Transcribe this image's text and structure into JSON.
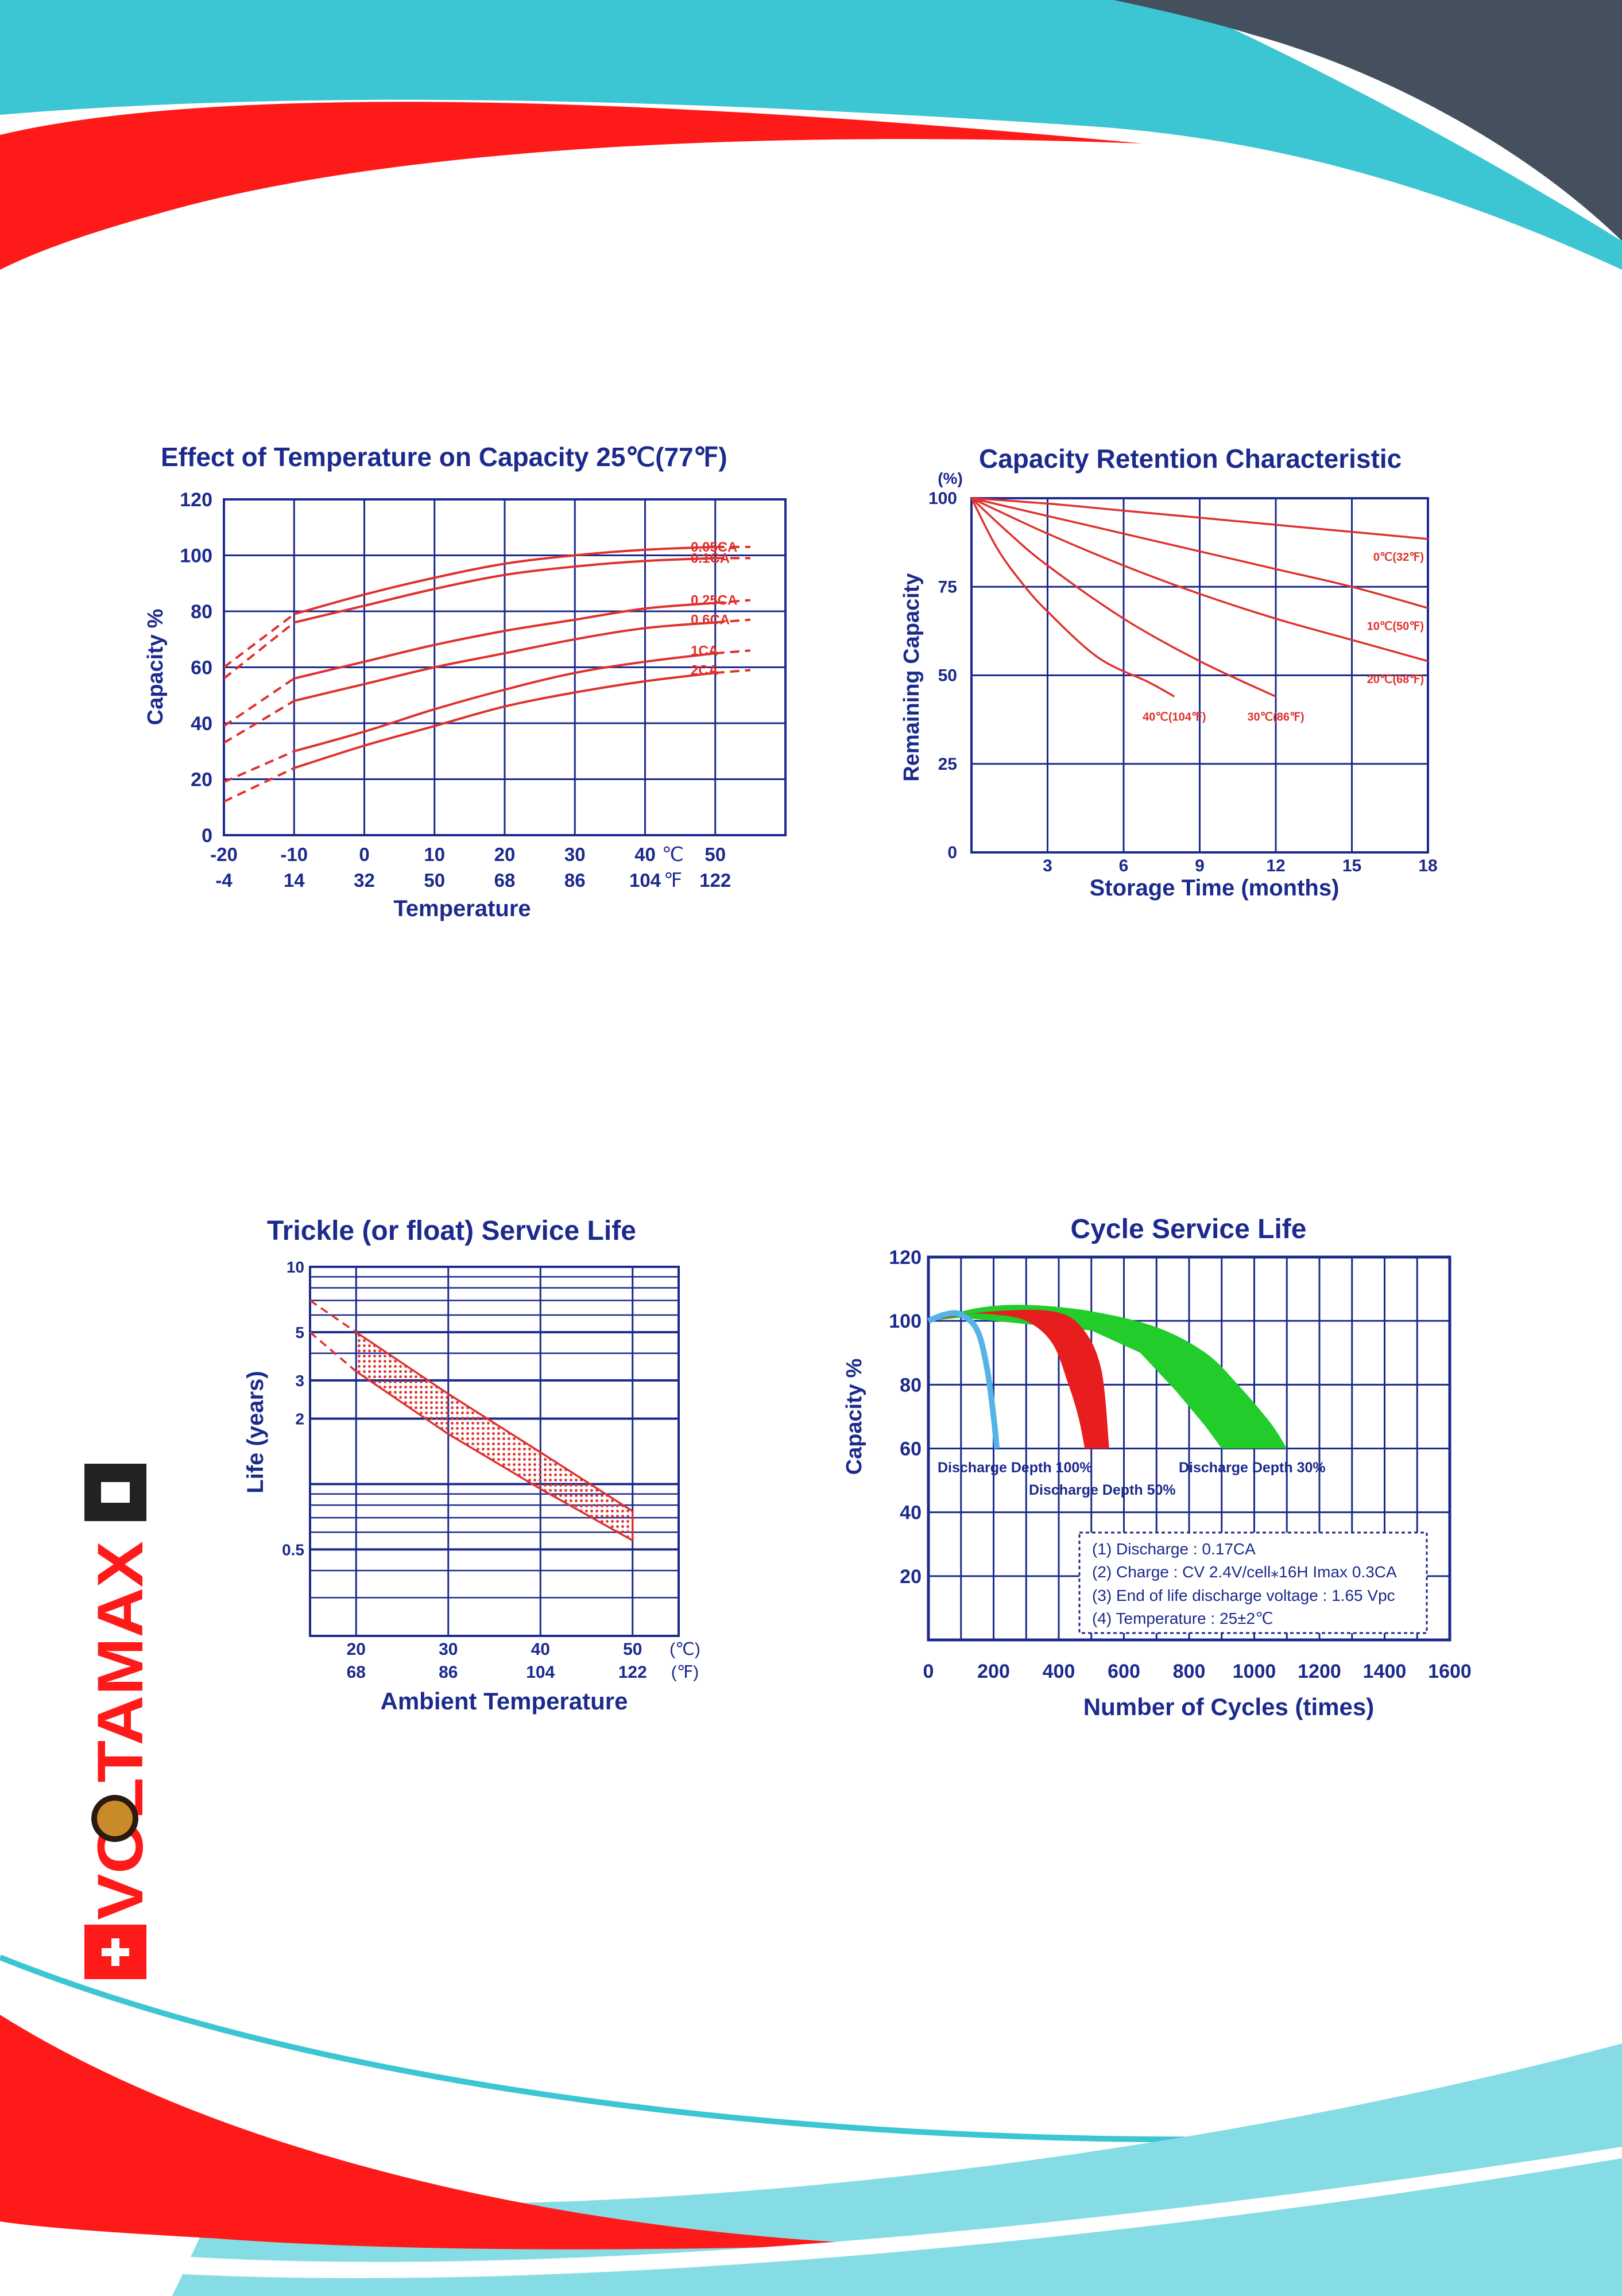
{
  "brand": {
    "logo_text": "VOLTAMAX",
    "colors": {
      "red": "#ff1a1a",
      "teal": "#3cc5d2",
      "light_teal": "#86dce5",
      "slate": "#44505e"
    }
  },
  "colors": {
    "axis": "#1b2a8c",
    "curve": "#e0312d",
    "grid": "#1b2a8c",
    "blue_fill": "#55b3e8",
    "red_fill": "#e81e1e",
    "green_fill": "#22cc2b"
  },
  "charts": {
    "temperature": {
      "title": "Effect of Temperature on Capacity  25℃(77℉)",
      "ylabel": "Capacity %",
      "xlabel": "Temperature",
      "unit_c": "℃",
      "unit_f": "℉"
    },
    "retention": {
      "title": "Capacity Retention Characteristic",
      "ylabel": "Remaining Capacity",
      "yunit": "(%)",
      "xlabel": "Storage Time (months)"
    },
    "trickle": {
      "title": "Trickle (or float) Service Life",
      "ylabel": "Life (years)",
      "xlabel": "Ambient Temperature",
      "unit_c": "(℃)",
      "unit_f": "(℉)"
    },
    "cycle": {
      "title": "Cycle Service Life",
      "ylabel": "Capacity %",
      "xlabel": "Number of Cycles (times)",
      "notes": [
        "(1) Discharge : 0.17CA",
        "(2) Charge : CV 2.4V/cell⁎16H Imax 0.3CA",
        "(3) End of life discharge voltage : 1.65 Vpc",
        "(4) Temperature : 25±2℃"
      ]
    }
  },
  "chart_data": [
    {
      "id": "temperature",
      "type": "line",
      "title": "Effect of Temperature on Capacity  25℃(77℉)",
      "xlabel": "Temperature",
      "ylabel": "Capacity %",
      "xlim": [
        -20,
        60
      ],
      "ylim": [
        0,
        120
      ],
      "x_ticks_c": [
        "-20",
        "-10",
        "0",
        "10",
        "20",
        "30",
        "40",
        "50"
      ],
      "x_ticks_f": [
        "-4",
        "14",
        "32",
        "50",
        "68",
        "86",
        "104",
        "122"
      ],
      "y_ticks": [
        "0",
        "20",
        "40",
        "60",
        "80",
        "100",
        "120"
      ],
      "series": [
        {
          "name": "0.05CA",
          "x": [
            -20,
            -10,
            0,
            10,
            20,
            30,
            40,
            50,
            55
          ],
          "y": [
            60,
            79,
            86,
            92,
            97,
            100,
            102,
            103,
            103
          ]
        },
        {
          "name": "0.1CA",
          "x": [
            -20,
            -10,
            0,
            10,
            20,
            30,
            40,
            50,
            55
          ],
          "y": [
            56,
            76,
            82,
            88,
            93,
            96,
            98,
            99,
            99
          ]
        },
        {
          "name": "0.25CA",
          "x": [
            -20,
            -10,
            0,
            10,
            20,
            30,
            40,
            50,
            55
          ],
          "y": [
            39,
            56,
            62,
            68,
            73,
            77,
            81,
            83,
            84
          ]
        },
        {
          "name": "0.6CA",
          "x": [
            -20,
            -10,
            0,
            10,
            20,
            30,
            40,
            50,
            55
          ],
          "y": [
            33,
            48,
            54,
            60,
            65,
            70,
            74,
            76,
            77
          ]
        },
        {
          "name": "1CA",
          "x": [
            -20,
            -10,
            0,
            10,
            20,
            30,
            40,
            50,
            55
          ],
          "y": [
            19,
            30,
            37,
            45,
            52,
            58,
            62,
            65,
            66
          ]
        },
        {
          "name": "2CA",
          "x": [
            -20,
            -10,
            0,
            10,
            20,
            30,
            40,
            50,
            55
          ],
          "y": [
            12,
            24,
            32,
            39,
            46,
            51,
            55,
            58,
            59
          ]
        }
      ]
    },
    {
      "id": "retention",
      "type": "line",
      "title": "Capacity Retention Characteristic",
      "xlabel": "Storage Time (months)",
      "ylabel": "Remaining Capacity",
      "xlim": [
        0,
        18
      ],
      "ylim": [
        0,
        100
      ],
      "x_ticks": [
        "3",
        "6",
        "9",
        "12",
        "15",
        "18"
      ],
      "y_ticks": [
        "0",
        "25",
        "50",
        "75",
        "100"
      ],
      "series": [
        {
          "name": "0℃(32℉)",
          "x": [
            0,
            3,
            6,
            9,
            12,
            15,
            18
          ],
          "y": [
            100,
            98.5,
            96.5,
            94.5,
            92.5,
            90.5,
            88.5
          ]
        },
        {
          "name": "10℃(50℉)",
          "x": [
            0,
            3,
            6,
            9,
            12,
            15,
            18
          ],
          "y": [
            100,
            95,
            90,
            85,
            80,
            75,
            69
          ]
        },
        {
          "name": "20℃(68℉)",
          "x": [
            0,
            3,
            6,
            9,
            12,
            15,
            18
          ],
          "y": [
            100,
            90,
            81,
            73,
            66,
            60,
            54
          ]
        },
        {
          "name": "30℃(86℉)",
          "x": [
            0,
            1.5,
            3,
            6,
            9,
            12
          ],
          "y": [
            100,
            90,
            81,
            66,
            54,
            44
          ]
        },
        {
          "name": "40℃(104℉)",
          "x": [
            0,
            1,
            2,
            3,
            5,
            7,
            8
          ],
          "y": [
            100,
            86,
            76,
            68,
            55,
            48,
            44
          ]
        }
      ]
    },
    {
      "id": "trickle",
      "type": "area",
      "title": "Trickle (or float) Service Life",
      "xlabel": "Ambient Temperature",
      "ylabel": "Life (years)",
      "xlim": [
        15,
        55
      ],
      "ylim": [
        0.2,
        10
      ],
      "log_y": true,
      "x_ticks_c": [
        "20",
        "30",
        "40",
        "50"
      ],
      "x_ticks_f": [
        "68",
        "86",
        "104",
        "122"
      ],
      "y_ticks": [
        "0.5",
        "2",
        "3",
        "5",
        "10"
      ],
      "series": [
        {
          "name": "upper",
          "x": [
            15,
            20,
            30,
            40,
            50
          ],
          "y": [
            7,
            5,
            2.6,
            1.4,
            0.75
          ]
        },
        {
          "name": "lower",
          "x": [
            15,
            20,
            30,
            40,
            50
          ],
          "y": [
            5,
            3.3,
            1.7,
            0.95,
            0.55
          ]
        }
      ]
    },
    {
      "id": "cycle",
      "type": "area",
      "title": "Cycle Service Life",
      "xlabel": "Number of Cycles (times)",
      "ylabel": "Capacity %",
      "xlim": [
        0,
        1600
      ],
      "ylim": [
        0,
        120
      ],
      "x_ticks": [
        "0",
        "200",
        "400",
        "600",
        "800",
        "1000",
        "1200",
        "1400",
        "1600"
      ],
      "y_ticks": [
        "20",
        "40",
        "60",
        "80",
        "100",
        "120"
      ],
      "series": [
        {
          "name": "Discharge Depth 100%",
          "x": [
            0,
            50,
            100,
            150,
            180,
            200,
            210
          ],
          "y": [
            100,
            102,
            102,
            97,
            85,
            70,
            60
          ]
        },
        {
          "name": "Discharge Depth 50%",
          "x": [
            0,
            100,
            200,
            300,
            380,
            430,
            460,
            480,
            500,
            510,
            530,
            560
          ],
          "y": [
            100,
            102,
            102,
            100,
            93,
            80,
            70,
            60,
            60,
            80,
            95,
            102
          ]
        },
        {
          "name": "Discharge Depth 30%",
          "x": [
            0,
            150,
            300,
            500,
            700,
            850,
            950,
            1050,
            1100
          ],
          "y": [
            100,
            104,
            105,
            103,
            98,
            90,
            80,
            68,
            60
          ]
        }
      ]
    }
  ]
}
